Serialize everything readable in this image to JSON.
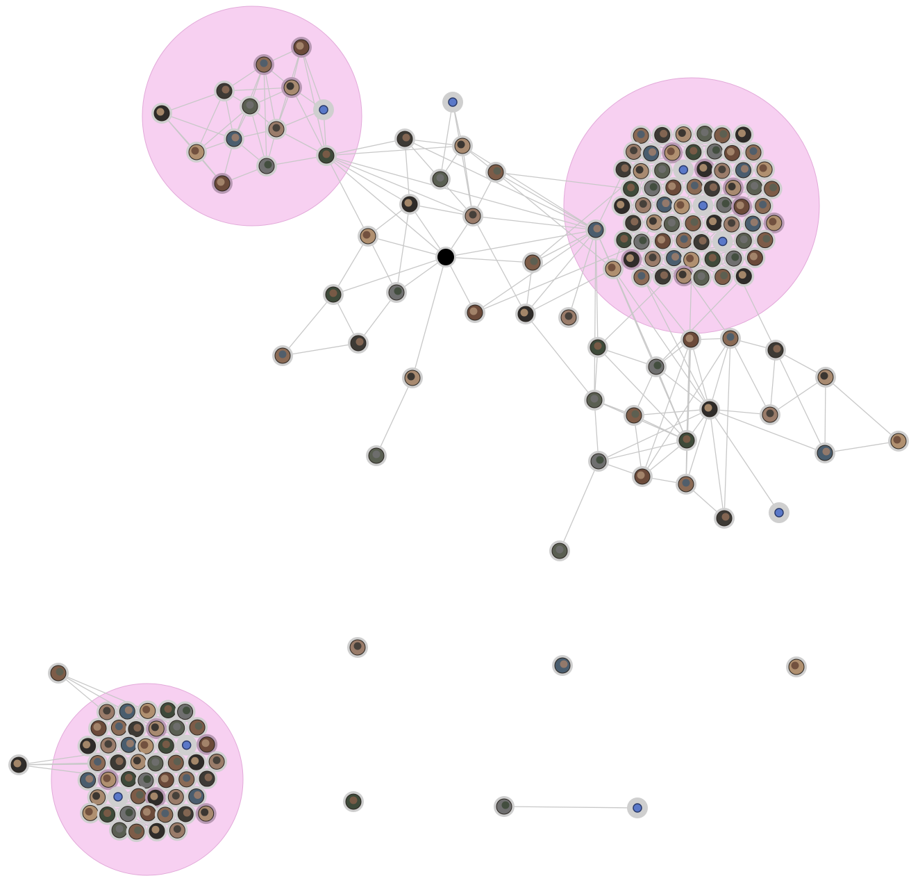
{
  "diagram": {
    "type": "network-graph",
    "node_style": "circular-avatar-thumbnails",
    "colors": {
      "background": "#ffffff",
      "cluster_fill": "#f6c8ef",
      "edge": "#c8c8c8",
      "node_halo": "#cfcfcf",
      "node_halo_highlight": "#b89ab4",
      "hub_node": "#000000",
      "avatar_palette": [
        "#6b4a3a",
        "#8a6a55",
        "#3d3a35",
        "#a88a70",
        "#5a5f52",
        "#7d5c48",
        "#2f2c2a",
        "#9a7c6a",
        "#4a5d6e",
        "#b09070",
        "#3e4a3a",
        "#6f6f6f"
      ]
    },
    "clusters": [
      {
        "id": "cluster-top-left",
        "member_count": 13
      },
      {
        "id": "cluster-top-right",
        "member_count": 60
      },
      {
        "id": "cluster-bottom-left",
        "member_count": 42
      }
    ],
    "isolated_node_count": 4,
    "isolated_pair_count": 1
  }
}
